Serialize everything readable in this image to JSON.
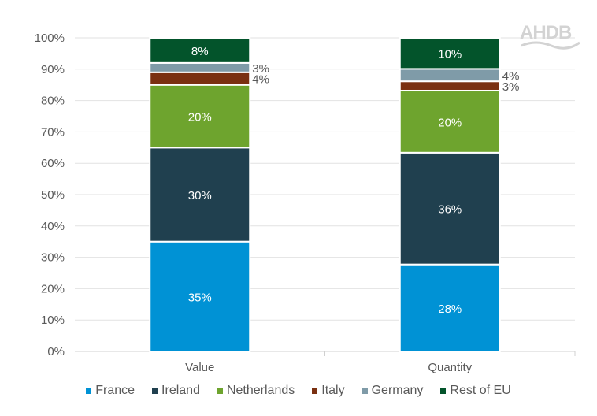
{
  "logo_text": "AHDB",
  "chart_data": {
    "type": "bar",
    "stacked": true,
    "percent_stacked": true,
    "categories": [
      "Value",
      "Quantity"
    ],
    "ylim": [
      0,
      100
    ],
    "yticks": [
      "0%",
      "10%",
      "20%",
      "30%",
      "40%",
      "50%",
      "60%",
      "70%",
      "80%",
      "90%",
      "100%"
    ],
    "grid": true,
    "legend_position": "bottom",
    "series": [
      {
        "name": "France",
        "color": "#0092d5",
        "values": [
          35,
          28
        ],
        "labels": [
          "35%",
          "28%"
        ],
        "label_position": "inside"
      },
      {
        "name": "Ireland",
        "color": "#20404f",
        "values": [
          30,
          36
        ],
        "labels": [
          "30%",
          "36%"
        ],
        "label_position": "inside"
      },
      {
        "name": "Netherlands",
        "color": "#6ea42e",
        "values": [
          20,
          20
        ],
        "labels": [
          "20%",
          "20%"
        ],
        "label_position": "inside"
      },
      {
        "name": "Italy",
        "color": "#7a3011",
        "values": [
          4,
          3
        ],
        "labels": [
          "4%",
          "3%"
        ],
        "label_position": "outside"
      },
      {
        "name": "Germany",
        "color": "#7f9ba8",
        "values": [
          3,
          4
        ],
        "labels": [
          "3%",
          "4%"
        ],
        "label_position": "outside"
      },
      {
        "name": "Rest of EU",
        "color": "#03542b",
        "values": [
          8,
          10
        ],
        "labels": [
          "8%",
          "10%"
        ],
        "label_position": "inside"
      }
    ]
  }
}
